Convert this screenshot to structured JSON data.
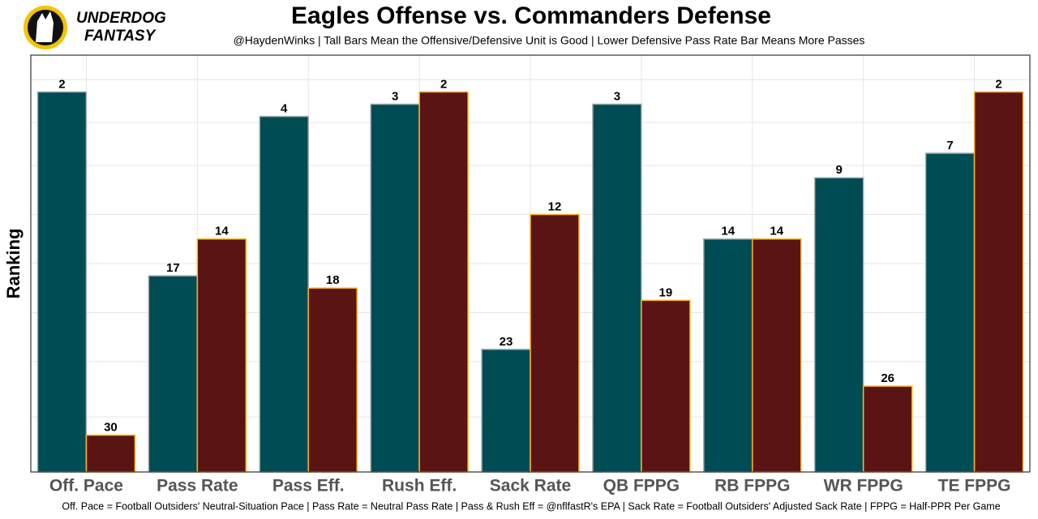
{
  "logo": {
    "line1": "UNDERDOG",
    "line2": "FANTASY"
  },
  "chart_data": {
    "type": "bar",
    "title": "Eagles Offense vs. Commanders Defense",
    "subtitle": "@HaydenWinks | Tall Bars Mean the Offensive/Defensive Unit is Good | Lower Defensive Pass Rate Bar Means More Passes",
    "y_label": "Ranking",
    "caption": "Off. Pace = Football Outsiders' Neutral-Situation Pace | Pass Rate = Neutral Pass Rate | Pass & Rush Eff = @nflfastR's EPA | Sack Rate = Football Outsiders' Adjusted Sack Rate | FPPG = Half-PPR Per Game",
    "categories": [
      "Off. Pace",
      "Pass Rate",
      "Pass Eff.",
      "Rush Eff.",
      "Sack Rate",
      "QB FPPG",
      "RB FPPG",
      "WR FPPG",
      "TE FPPG"
    ],
    "series": [
      {
        "color": "#004c54",
        "stroke": "#a5acaf",
        "values": [
          2,
          17,
          4,
          3,
          23,
          3,
          14,
          9,
          7
        ]
      },
      {
        "color": "#5a1414",
        "stroke": "#ffb612",
        "values": [
          30,
          14,
          18,
          2,
          12,
          19,
          14,
          26,
          2
        ]
      }
    ],
    "ylim": [
      33,
      -1
    ],
    "yticks": [
      1,
      4.5,
      8,
      12,
      16,
      20,
      24,
      28.5
    ],
    "grid": true
  }
}
